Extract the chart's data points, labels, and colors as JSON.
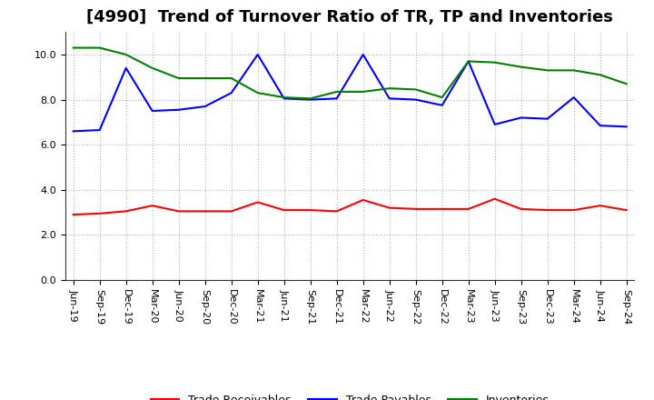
{
  "title": "[4990]  Trend of Turnover Ratio of TR, TP and Inventories",
  "xlabels": [
    "Jun-19",
    "Sep-19",
    "Dec-19",
    "Mar-20",
    "Jun-20",
    "Sep-20",
    "Dec-20",
    "Mar-21",
    "Jun-21",
    "Sep-21",
    "Dec-21",
    "Mar-22",
    "Jun-22",
    "Sep-22",
    "Dec-22",
    "Mar-23",
    "Jun-23",
    "Sep-23",
    "Dec-23",
    "Mar-24",
    "Jun-24",
    "Sep-24"
  ],
  "trade_receivables": [
    2.9,
    2.95,
    3.05,
    3.3,
    3.05,
    3.05,
    3.05,
    3.45,
    3.1,
    3.1,
    3.05,
    3.55,
    3.2,
    3.15,
    3.15,
    3.15,
    3.6,
    3.15,
    3.1,
    3.1,
    3.3,
    3.1
  ],
  "trade_payables": [
    6.6,
    6.65,
    9.4,
    7.5,
    7.55,
    7.7,
    8.3,
    10.0,
    8.05,
    8.0,
    8.05,
    10.0,
    8.05,
    8.0,
    7.75,
    9.7,
    6.9,
    7.2,
    7.15,
    8.1,
    6.85,
    6.8
  ],
  "inventories": [
    10.3,
    10.3,
    10.0,
    9.4,
    8.95,
    8.95,
    8.95,
    8.3,
    8.1,
    8.05,
    8.35,
    8.35,
    8.5,
    8.45,
    8.1,
    9.7,
    9.65,
    9.45,
    9.3,
    9.3,
    9.1,
    8.7
  ],
  "tr_color": "#ff0000",
  "tp_color": "#0000ff",
  "inv_color": "#008000",
  "ylim": [
    0.0,
    11.0
  ],
  "yticks": [
    0.0,
    2.0,
    4.0,
    6.0,
    8.0,
    10.0
  ],
  "background_color": "#ffffff",
  "grid_color": "#aaaaaa",
  "title_fontsize": 13,
  "tick_fontsize": 8,
  "legend_labels": [
    "Trade Receivables",
    "Trade Payables",
    "Inventories"
  ],
  "legend_fontsize": 9
}
